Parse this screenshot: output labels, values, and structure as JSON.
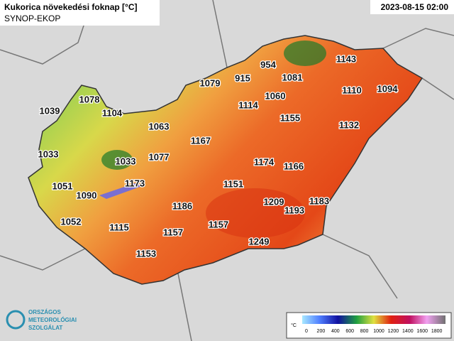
{
  "header": {
    "title": "Kukorica növekedési foknap [°C]",
    "subtitle": "SYNOP-EKOP",
    "timestamp": "2023-08-15 02:00"
  },
  "stations": [
    1143,
    954,
    915,
    1081,
    1079,
    1110,
    1094,
    1078,
    1060,
    1039,
    1104,
    1114,
    1155,
    1132,
    1063,
    1167,
    1033,
    1077,
    1033,
    1174,
    1166,
    1051,
    1173,
    1151,
    1090,
    1209,
    1183,
    1193,
    1186,
    1052,
    1115,
    1157,
    1157,
    1249,
    1153
  ],
  "legend": {
    "unit": "°C",
    "ticks": [
      0,
      200,
      400,
      600,
      800,
      1000,
      1200,
      1400,
      1600,
      1800
    ]
  },
  "logo": {
    "lines": [
      "ORSZÁGOS",
      "METEOROLÓGIAI",
      "SZOLGÁLAT"
    ]
  }
}
